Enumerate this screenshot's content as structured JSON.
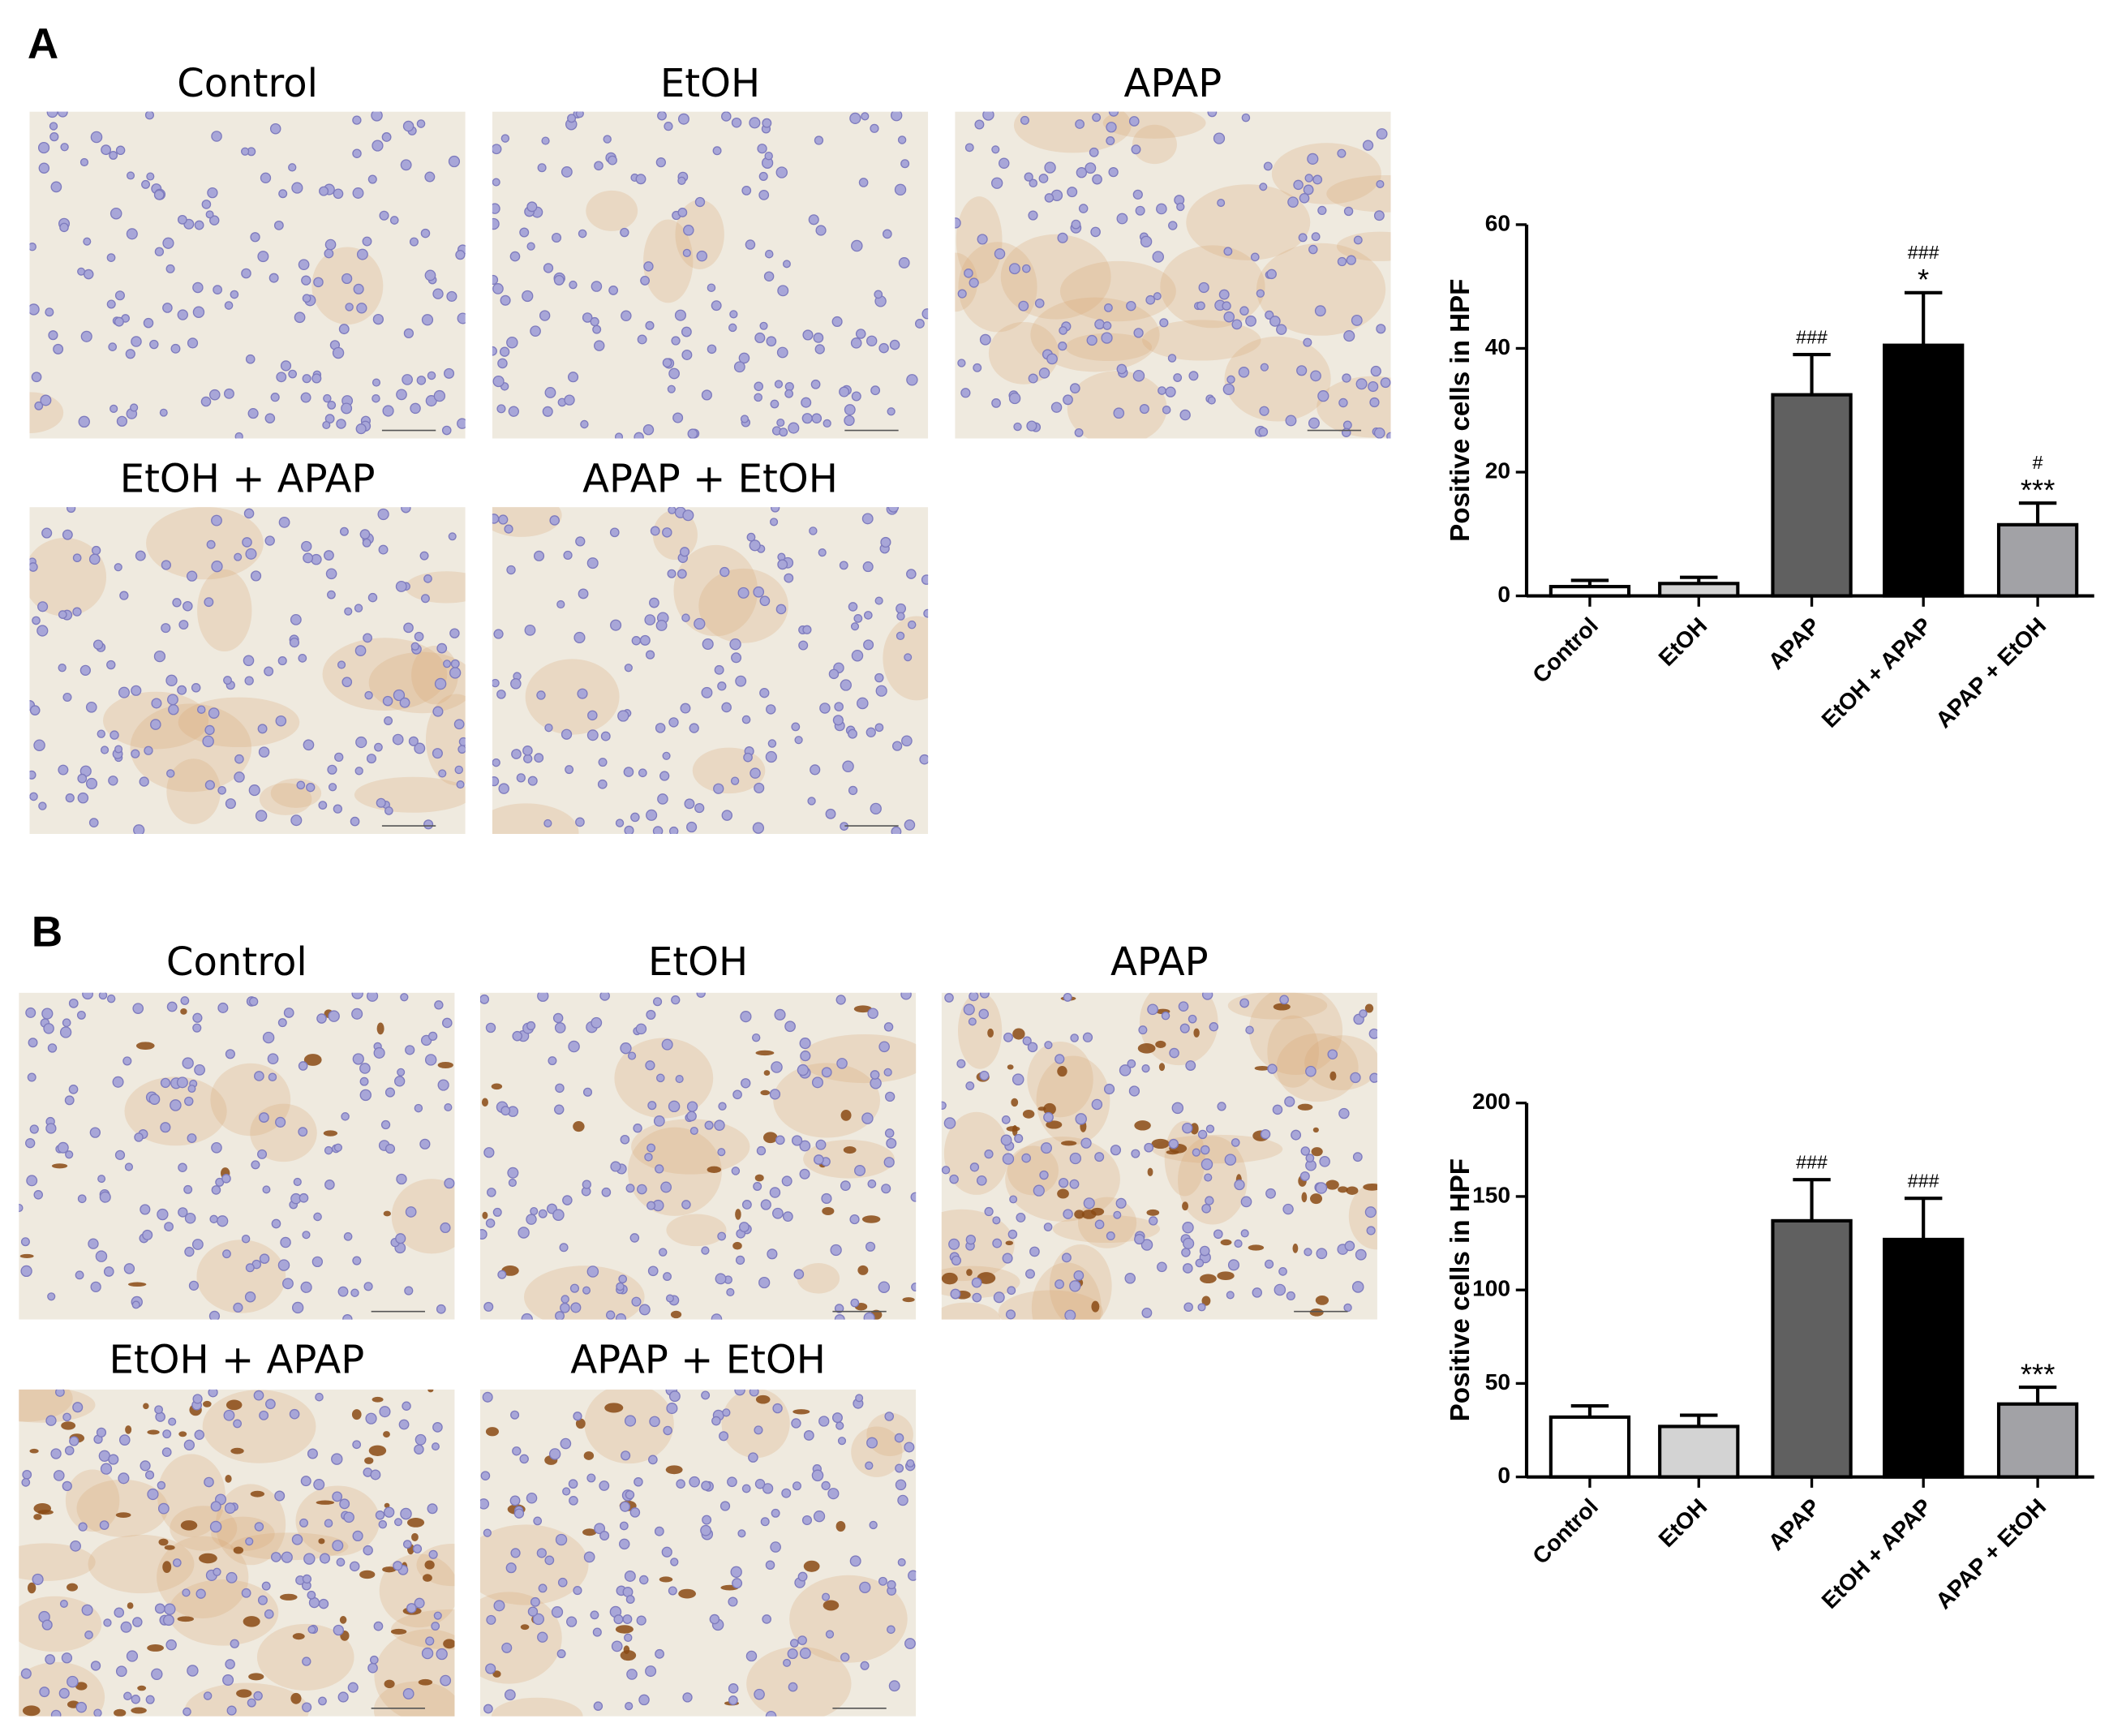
{
  "panels": [
    {
      "label": "A",
      "images": [
        "Control",
        "EtOH",
        "APAP",
        "EtOH + APAP",
        "APAP + EtOH"
      ]
    },
    {
      "label": "B",
      "images": [
        "Control",
        "EtOH",
        "APAP",
        "EtOH + APAP",
        "APAP + EtOH"
      ]
    }
  ],
  "chart_data": [
    {
      "type": "bar",
      "ylabel": "Positive cells in HPF",
      "categories": [
        "Control",
        "EtOH",
        "APAP",
        "EtOH + APAP",
        "APAP + EtOH"
      ],
      "values": [
        1.5,
        2,
        32.5,
        40.5,
        11.5
      ],
      "errors": [
        1,
        1,
        6.5,
        8.5,
        3.5
      ],
      "colors": [
        "#ffffff",
        "#d3d3d3",
        "#606060",
        "#000000",
        "#a2a2a6"
      ],
      "annotations": [
        [],
        [],
        [
          "###"
        ],
        [
          "###",
          "*"
        ],
        [
          "#",
          "***"
        ]
      ],
      "ylim": [
        0,
        60
      ],
      "yticks": [
        0,
        20,
        40,
        60
      ]
    },
    {
      "type": "bar",
      "ylabel": "Positive cells in HPF",
      "categories": [
        "Control",
        "EtOH",
        "APAP",
        "EtOH + APAP",
        "APAP + EtOH"
      ],
      "values": [
        32,
        27,
        137,
        127,
        39
      ],
      "errors": [
        6,
        6,
        22,
        22,
        9
      ],
      "colors": [
        "#ffffff",
        "#d3d3d3",
        "#606060",
        "#000000",
        "#a2a2a6"
      ],
      "annotations": [
        [],
        [],
        [
          "###"
        ],
        [
          "###"
        ],
        [
          "***"
        ]
      ],
      "ylim": [
        0,
        200
      ],
      "yticks": [
        0,
        50,
        100,
        150,
        200
      ]
    }
  ]
}
